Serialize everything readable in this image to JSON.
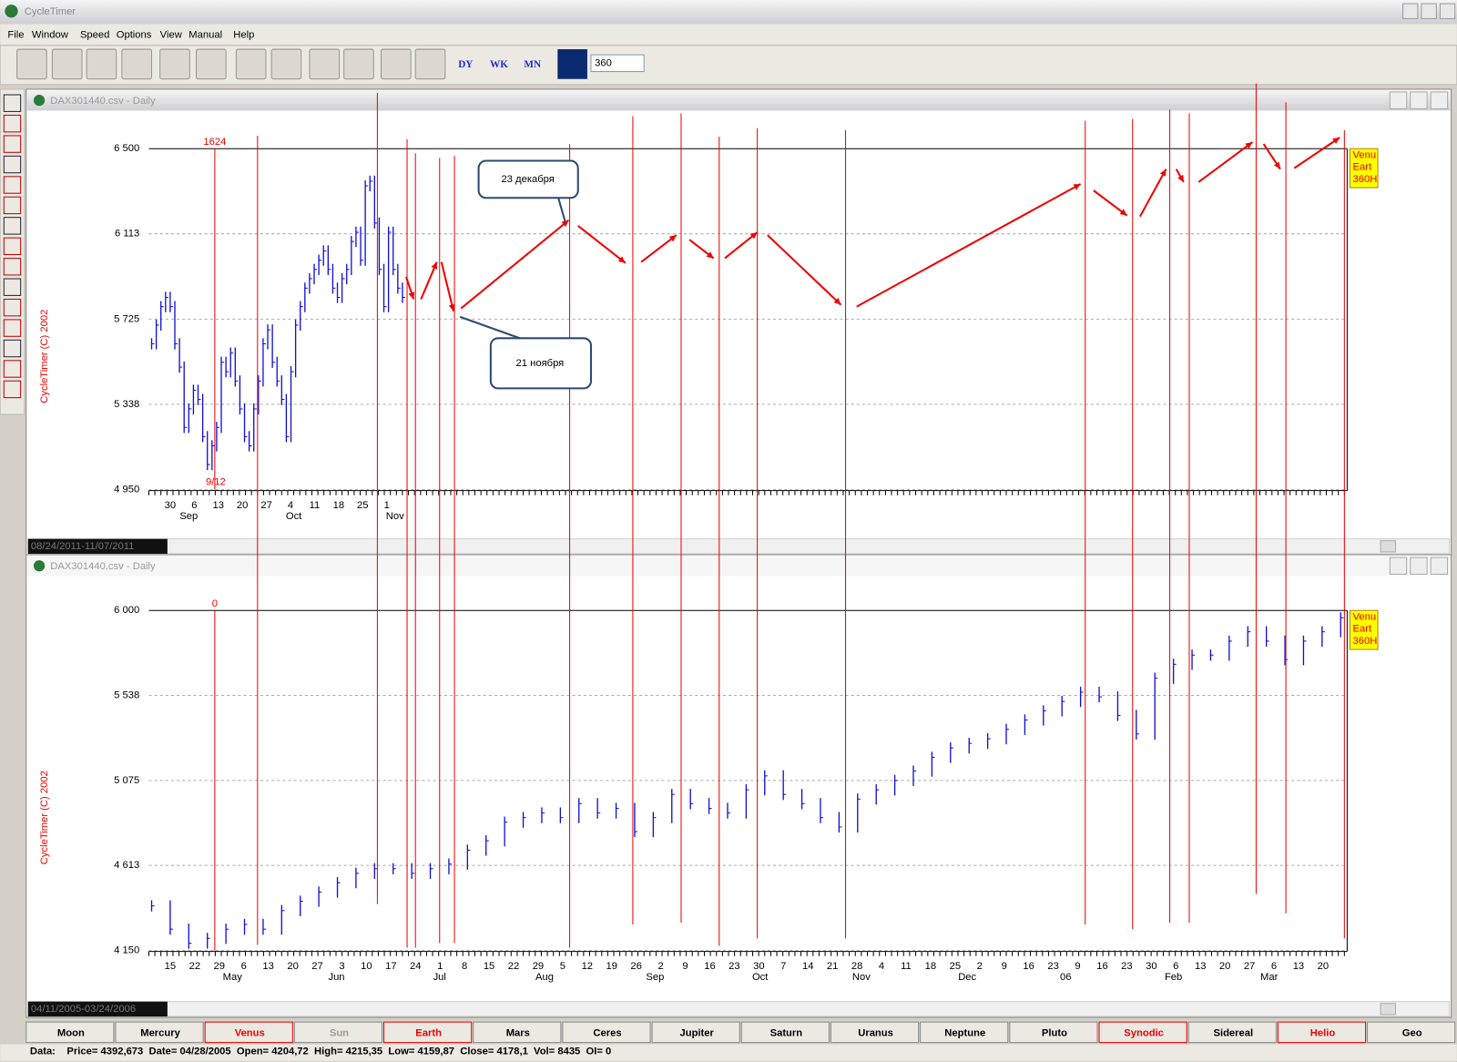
{
  "window": {
    "title": "CycleTimer",
    "menu": [
      "File",
      "Window",
      "Speed",
      "Options",
      "View",
      "Manual",
      "Help"
    ],
    "toolbar_labels": [
      "DY",
      "WK",
      "MN"
    ],
    "cycle_input": "360"
  },
  "charts": [
    {
      "window_title": "DAX301440.csv - Daily",
      "date_range": "08/24/2011-11/07/2011",
      "watermark": "CycleTimer (C) 2002",
      "top_label": "1624",
      "low_label": "9/12",
      "legend": [
        "Venu",
        "Eart",
        "360H"
      ],
      "callouts": [
        "23 декабря",
        "21 ноября"
      ],
      "ylim": [
        4950,
        6500
      ],
      "yticks": [
        {
          "value": 6500,
          "label": "6 500"
        },
        {
          "value": 6113,
          "label": "6 113"
        },
        {
          "value": 5725,
          "label": "5 725"
        },
        {
          "value": 5338,
          "label": "5 338"
        },
        {
          "value": 4950,
          "label": "4 950"
        }
      ],
      "x_day_labels": [
        "30",
        "6",
        "13",
        "20",
        "27",
        "4",
        "11",
        "18",
        "25",
        "1"
      ],
      "x_month_labels": [
        "Sep",
        "Oct",
        "Nov"
      ],
      "values": [
        5613,
        5698,
        5782,
        5824,
        5782,
        5613,
        5507,
        5233,
        5317,
        5402,
        5360,
        5191,
        5064,
        5149,
        5233,
        5529,
        5486,
        5571,
        5444,
        5317,
        5191,
        5149,
        5317,
        5444,
        5613,
        5676,
        5529,
        5444,
        5360,
        5191,
        5486,
        5698,
        5782,
        5866,
        5909,
        5951,
        5993,
        6035,
        5951,
        5866,
        5824,
        5909,
        5951,
        6078,
        6120,
        5993,
        6331,
        6352,
        6162,
        5951,
        5782,
        6120,
        5951,
        5866,
        5824
      ]
    },
    {
      "window_title": "DAX301440.csv - Daily",
      "date_range": "04/11/2005-03/24/2006",
      "watermark": "CycleTimer (C) 2002",
      "top_label": "0",
      "legend": [
        "Venu",
        "Eart",
        "360H"
      ],
      "ylim": [
        4150,
        6000
      ],
      "yticks": [
        {
          "value": 6000,
          "label": "6 000"
        },
        {
          "value": 5538,
          "label": "5 538"
        },
        {
          "value": 5075,
          "label": "5 075"
        },
        {
          "value": 4613,
          "label": "4 613"
        },
        {
          "value": 4150,
          "label": "4 150"
        }
      ],
      "x_day_labels": [
        "15",
        "22",
        "29",
        "6",
        "13",
        "20",
        "27",
        "3",
        "10",
        "17",
        "24",
        "1",
        "8",
        "15",
        "22",
        "29",
        "5",
        "12",
        "19",
        "26",
        "2",
        "9",
        "16",
        "23",
        "30",
        "7",
        "14",
        "21",
        "28",
        "4",
        "11",
        "18",
        "25",
        "2",
        "9",
        "16",
        "23",
        "9",
        "16",
        "23",
        "30",
        "6",
        "13",
        "20",
        "27",
        "6",
        "13",
        "20"
      ],
      "x_month_labels": [
        "May",
        "Jun",
        "Jul",
        "Aug",
        "Sep",
        "Oct",
        "Nov",
        "Dec",
        "06",
        "Feb",
        "Mar"
      ],
      "values": [
        4393,
        4266,
        4190,
        4216,
        4266,
        4292,
        4266,
        4367,
        4418,
        4468,
        4519,
        4570,
        4595,
        4595,
        4570,
        4595,
        4620,
        4696,
        4747,
        4848,
        4873,
        4898,
        4873,
        4949,
        4898,
        4923,
        4797,
        4873,
        4999,
        4949,
        4923,
        4898,
        5024,
        5100,
        4999,
        4949,
        4873,
        4822,
        4974,
        5024,
        5075,
        5126,
        5201,
        5252,
        5277,
        5302,
        5353,
        5404,
        5454,
        5505,
        5555,
        5530,
        5429,
        5328,
        5631,
        5707,
        5757,
        5757,
        5833,
        5884,
        5833,
        5732,
        5833,
        5884,
        5960
      ]
    }
  ],
  "planet_buttons": [
    "Moon",
    "Mercury",
    "Venus",
    "Sun",
    "Earth",
    "Mars",
    "Ceres",
    "Jupiter",
    "Saturn",
    "Uranus",
    "Neptune",
    "Pluto",
    "Synodic",
    "Sidereal",
    "Helio",
    "Geo"
  ],
  "status_bar": "Data:    Price= 4392,673  Date= 04/28/2005  Open= 4204,72  High= 4215,35  Low= 4159,87  Close= 4178,1  Vol= 8435  OI= 0"
}
